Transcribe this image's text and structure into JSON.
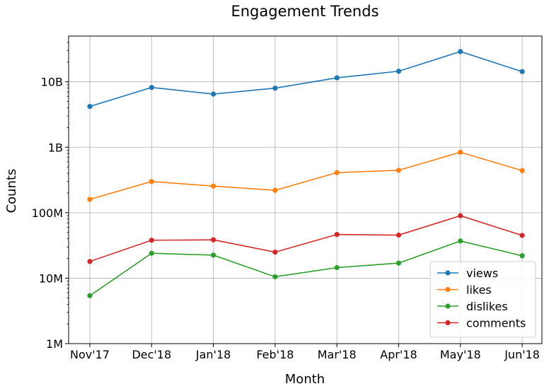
{
  "chart_data": {
    "type": "line",
    "title": "Engagement Trends",
    "xlabel": "Month",
    "ylabel": "Counts",
    "yscale": "log",
    "ylim": [
      1000000,
      50000000000
    ],
    "yticks": [
      1000000,
      10000000,
      100000000,
      1000000000,
      10000000000
    ],
    "ytick_labels": [
      "1M",
      "10M",
      "100M",
      "1B",
      "10B"
    ],
    "grid": true,
    "legend_position": "bottom-right",
    "categories": [
      "Nov'17",
      "Dec'18",
      "Jan'18",
      "Feb'18",
      "Mar'18",
      "Apr'18",
      "May'18",
      "Jun'18"
    ],
    "series": [
      {
        "name": "views",
        "color": "#1f77b4",
        "values": [
          4200000000,
          8200000000,
          6500000000,
          8000000000,
          11500000000,
          14500000000,
          29000000000,
          14300000000
        ]
      },
      {
        "name": "likes",
        "color": "#ff7f0e",
        "values": [
          160000000,
          300000000,
          255000000,
          220000000,
          410000000,
          445000000,
          840000000,
          440000000
        ]
      },
      {
        "name": "dislikes",
        "color": "#2ca02c",
        "values": [
          5400000,
          24000000,
          22500000,
          10500000,
          14500000,
          17000000,
          37000000,
          22000000
        ]
      },
      {
        "name": "comments",
        "color": "#d62728",
        "values": [
          18000000,
          38000000,
          38500000,
          25000000,
          46500000,
          45500000,
          90000000,
          45000000
        ]
      }
    ]
  }
}
